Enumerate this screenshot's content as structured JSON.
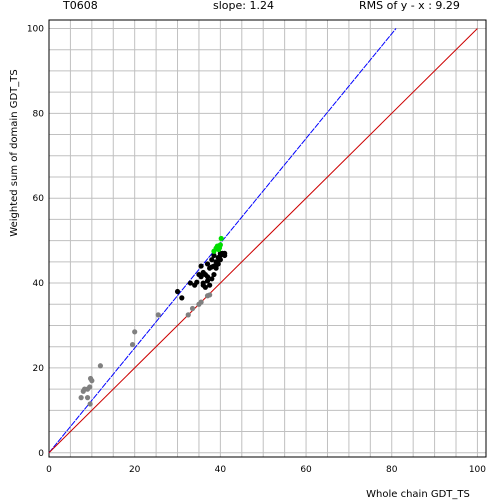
{
  "header": {
    "target": "T0608",
    "slope_text": "slope: 1.24",
    "rms_text": "RMS of  y - x : 9.29"
  },
  "chart_data": {
    "type": "scatter",
    "xlabel": "Whole chain GDT_TS",
    "ylabel": "Weighted sum of domain GDT_TS",
    "xlim": [
      0,
      102
    ],
    "ylim": [
      -1,
      102
    ],
    "xticks": [
      0,
      20,
      40,
      60,
      80,
      100
    ],
    "yticks": [
      0,
      20,
      40,
      60,
      80,
      100
    ],
    "grid_step": 5,
    "grid": true,
    "colors": {
      "grid": "#c0c0c0",
      "gray_points": "#808080",
      "black_points": "#000000",
      "green_points": "#00dd00",
      "fit_line": "#0000ff",
      "diagonal": "#cc0000"
    },
    "lines": [
      {
        "name": "slope",
        "from": [
          0,
          0
        ],
        "to": [
          81,
          100
        ],
        "color": "#0000ff",
        "style": "dashed"
      },
      {
        "name": "y=x",
        "from": [
          0,
          0
        ],
        "to": [
          100,
          100
        ],
        "color": "#cc0000",
        "style": "solid"
      }
    ],
    "series": [
      {
        "color": "#808080",
        "points": [
          [
            7.5,
            13.0
          ],
          [
            8.0,
            14.5
          ],
          [
            8.3,
            15.0
          ],
          [
            9.0,
            15.0
          ],
          [
            9.0,
            13.0
          ],
          [
            9.5,
            15.5
          ],
          [
            9.7,
            17.5
          ],
          [
            10.0,
            17.0
          ],
          [
            9.6,
            11.5
          ],
          [
            12.0,
            20.5
          ],
          [
            19.5,
            25.5
          ],
          [
            20.0,
            28.5
          ],
          [
            25.5,
            32.5
          ],
          [
            32.5,
            32.5
          ],
          [
            33.5,
            34.0
          ],
          [
            35.0,
            35.0
          ],
          [
            35.5,
            35.5
          ],
          [
            37.0,
            37.0
          ],
          [
            37.5,
            37.2
          ]
        ]
      },
      {
        "color": "#000000",
        "points": [
          [
            30.0,
            38.0
          ],
          [
            31.0,
            36.5
          ],
          [
            33.0,
            40.0
          ],
          [
            34.0,
            39.5
          ],
          [
            34.5,
            40.2
          ],
          [
            35.0,
            42.0
          ],
          [
            35.5,
            41.5
          ],
          [
            35.5,
            44.0
          ],
          [
            36.0,
            42.5
          ],
          [
            36.0,
            40.0
          ],
          [
            36.5,
            42.0
          ],
          [
            36.0,
            39.5
          ],
          [
            37.0,
            44.5
          ],
          [
            37.0,
            41.5
          ],
          [
            37.5,
            43.5
          ],
          [
            37.0,
            40.5
          ],
          [
            38.0,
            45.5
          ],
          [
            38.0,
            43.8
          ],
          [
            38.5,
            44.0
          ],
          [
            38.0,
            41.0
          ],
          [
            38.5,
            42.0
          ],
          [
            39.0,
            45.0
          ],
          [
            39.0,
            44.0
          ],
          [
            39.5,
            46.0
          ],
          [
            38.5,
            46.5
          ],
          [
            39.0,
            43.5
          ],
          [
            40.0,
            47.0
          ],
          [
            40.0,
            46.5
          ],
          [
            40.5,
            47.0
          ],
          [
            41.0,
            47.0
          ],
          [
            41.0,
            46.5
          ],
          [
            39.5,
            44.5
          ],
          [
            37.5,
            39.5
          ],
          [
            36.5,
            39.0
          ],
          [
            40.0,
            45.5
          ]
        ]
      },
      {
        "color": "#00dd00",
        "points": [
          [
            38.5,
            47.5
          ],
          [
            39.0,
            48.2
          ],
          [
            39.3,
            48.7
          ],
          [
            39.6,
            47.9
          ],
          [
            40.0,
            49.0
          ],
          [
            39.8,
            48.3
          ],
          [
            40.2,
            50.5
          ]
        ]
      }
    ]
  }
}
